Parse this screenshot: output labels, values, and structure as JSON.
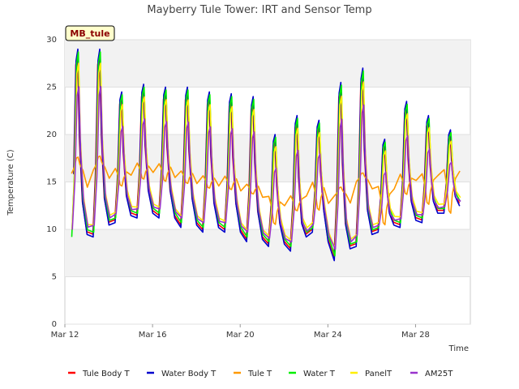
{
  "chart_data": {
    "type": "line",
    "title": "Mayberry Tule Tower: IRT and Sensor Temp",
    "xlabel": "Time",
    "ylabel": "Temperature (C)",
    "badge": "MB_tule",
    "ylim": [
      0,
      30
    ],
    "yticks": [
      0,
      5,
      10,
      15,
      20,
      25,
      30
    ],
    "xlim": [
      12,
      30.5
    ],
    "xticks": [
      {
        "label": "Mar 12",
        "day": 12
      },
      {
        "label": "Mar 16",
        "day": 16
      },
      {
        "label": "Mar 20",
        "day": 20
      },
      {
        "label": "Mar 24",
        "day": 24
      },
      {
        "label": "Mar 28",
        "day": 28
      }
    ],
    "day_cycles": {
      "day": [
        12,
        13,
        14,
        15,
        16,
        17,
        18,
        19,
        20,
        21,
        22,
        23,
        24,
        25,
        26,
        27,
        28,
        29,
        30
      ],
      "min_temp": [
        9.0,
        9.5,
        11.0,
        11.5,
        11.5,
        10.5,
        10.0,
        10.0,
        9.0,
        8.5,
        8.0,
        10.0,
        7.0,
        8.5,
        10.0,
        10.5,
        11.0,
        12.0,
        12.5
      ],
      "max_temp": [
        28.5,
        28.5,
        24.0,
        24.8,
        24.5,
        24.5,
        24.0,
        23.8,
        23.5,
        19.5,
        21.5,
        21.0,
        25.0,
        26.5,
        19.0,
        23.0,
        21.5,
        20.0,
        23.0
      ]
    },
    "series": [
      {
        "name": "Tule Body T",
        "color": "#ff0000",
        "peak_offset": 0.0,
        "trough_offset": 0.0,
        "damping": 1.0
      },
      {
        "name": "Water Body T",
        "color": "#0000cc",
        "peak_offset": 0.5,
        "trough_offset": -0.3,
        "damping": 1.0
      },
      {
        "name": "Tule T",
        "color": "#ff9900",
        "peak_offset": -6.5,
        "trough_offset": 2.5,
        "damping": 0.55
      },
      {
        "name": "Water T",
        "color": "#00ee00",
        "peak_offset": 0.2,
        "trough_offset": 0.2,
        "damping": 1.0
      },
      {
        "name": "PanelT",
        "color": "#ffee00",
        "peak_offset": -0.5,
        "trough_offset": 0.5,
        "damping": 0.95
      },
      {
        "name": "AM25T",
        "color": "#9933cc",
        "peak_offset": -2.5,
        "trough_offset": 0.0,
        "damping": 0.9
      }
    ]
  }
}
